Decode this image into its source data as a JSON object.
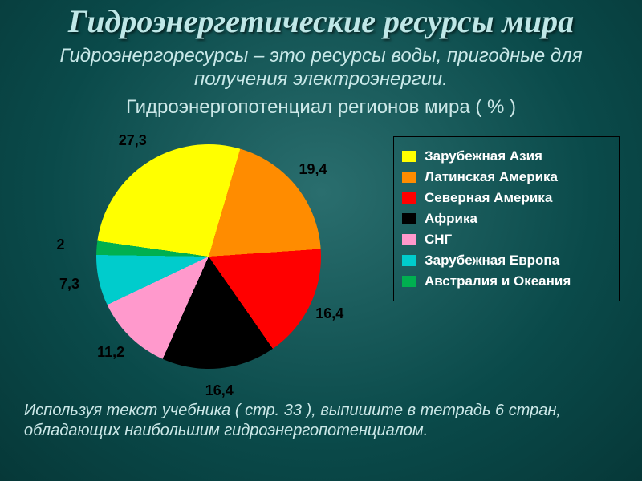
{
  "title_text": "Гидроэнергетические  ресурсы мира",
  "title_fontsize": 40,
  "subtitle_text": "Гидроэнергоресурсы – это  ресурсы  воды, пригодные  для  получения  электроэнергии.",
  "subtitle_fontsize": 24,
  "chart_title_text": "Гидроэнергопотенциал  регионов  мира  ( % )",
  "chart_title_fontsize": 24,
  "footer_text": "Используя  текст  учебника  ( стр.  33 ),  выпишите  в  тетрадь 6  стран,  обладающих  наибольшим  гидроэнергопотенциалом.",
  "footer_fontsize": 20,
  "background_gradient_center": "#2a6e6e",
  "background_gradient_edge": "#063838",
  "pie_chart": {
    "type": "pie",
    "start_angle_deg": -82,
    "slices": [
      {
        "label": "Зарубежная Азия",
        "value": 27.3,
        "color": "#ffff00",
        "pct_text": "27,3"
      },
      {
        "label": "Латинская Америка",
        "value": 19.4,
        "color": "#ff8c00",
        "pct_text": "19,4"
      },
      {
        "label": "Северная Америка",
        "value": 16.4,
        "color": "#ff0000",
        "pct_text": "16,4"
      },
      {
        "label": "Африка",
        "value": 16.4,
        "color": "#000000",
        "pct_text": "16,4"
      },
      {
        "label": "СНГ",
        "value": 11.2,
        "color": "#ff99cc",
        "pct_text": "11,2"
      },
      {
        "label": "Зарубежная Европа",
        "value": 7.3,
        "color": "#00cccc",
        "pct_text": "7,3"
      },
      {
        "label": "Австралия и Океания",
        "value": 2.0,
        "color": "#00b050",
        "pct_text": "2"
      }
    ],
    "label_fontsize": 18,
    "label_color": "#000000",
    "legend_fontsize": 17,
    "legend_text_color": "#ffffff",
    "legend_border_color": "#000000"
  }
}
